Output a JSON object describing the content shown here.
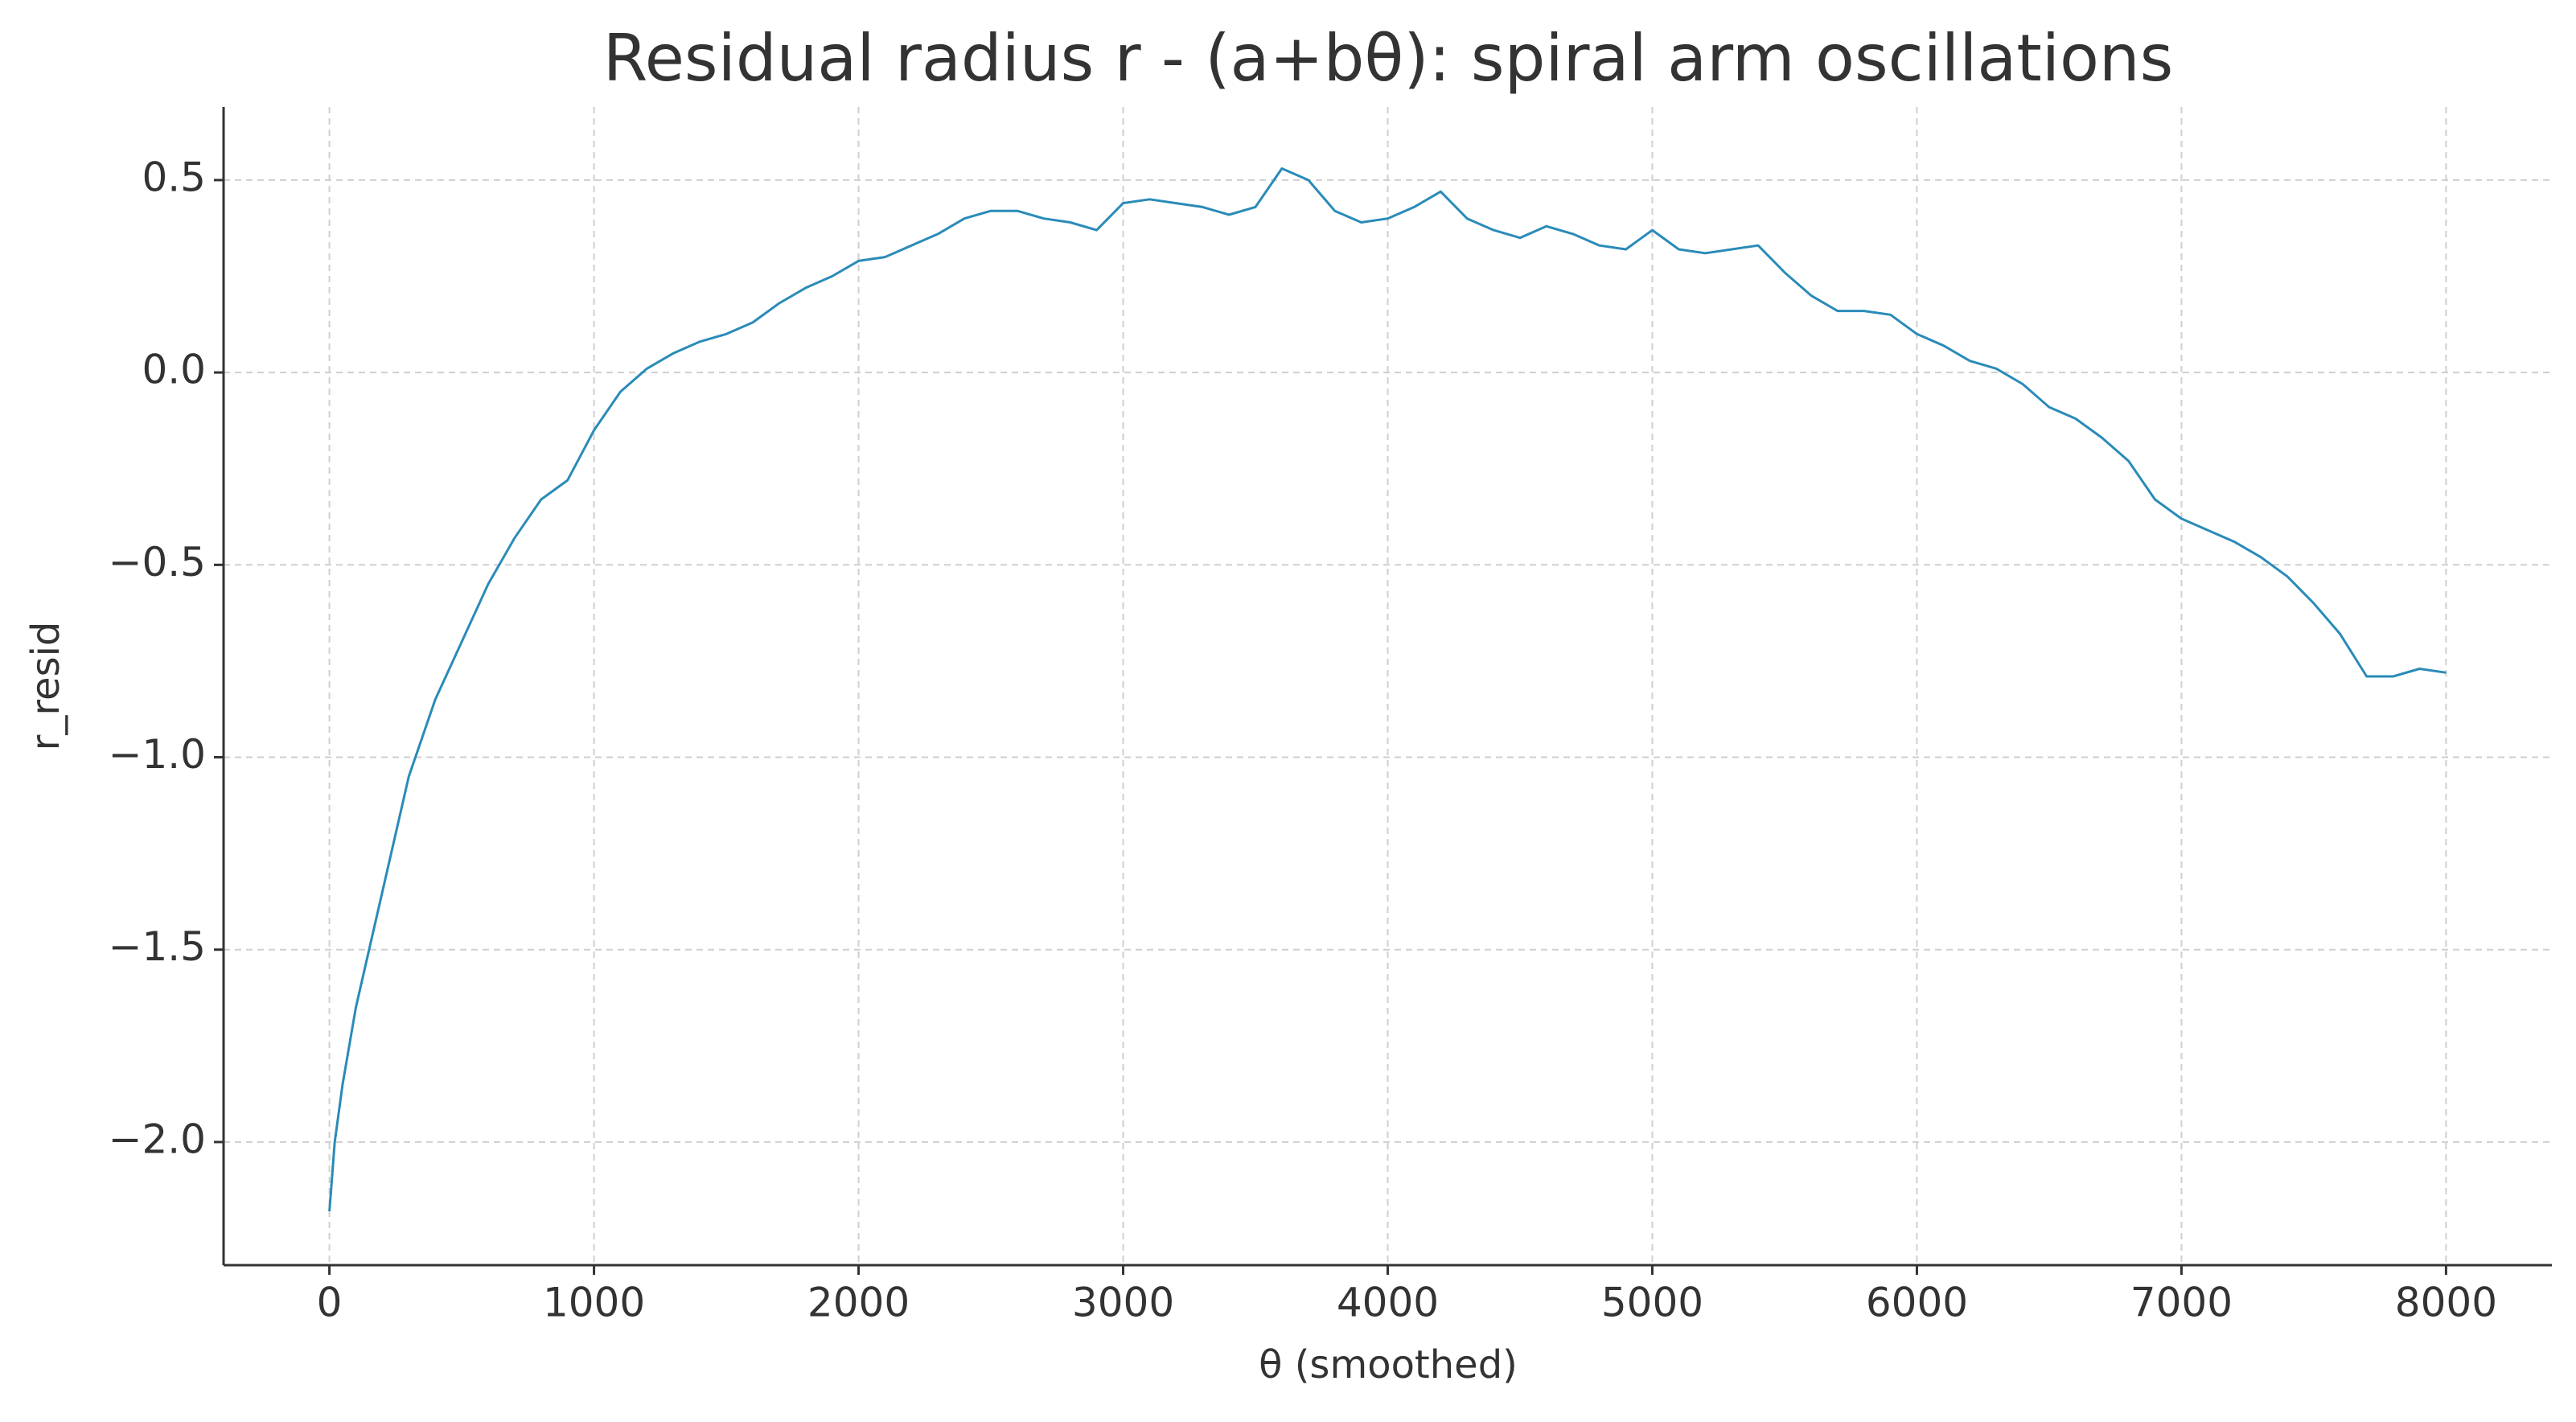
{
  "chart_data": {
    "type": "line",
    "title": "Residual radius r - (a+bθ): spiral arm oscillations",
    "xlabel": "θ (smoothed)",
    "ylabel": "r_resid",
    "color": "#2a8bb8",
    "grid": true,
    "xlim": [
      -400,
      8400
    ],
    "ylim": [
      -2.32,
      0.69
    ],
    "xticks": [
      0,
      1000,
      2000,
      3000,
      4000,
      5000,
      6000,
      7000,
      8000
    ],
    "yticks": [
      {
        "value": -2.0,
        "label": "−2.0"
      },
      {
        "value": -1.5,
        "label": "−1.5"
      },
      {
        "value": -1.0,
        "label": "−1.0"
      },
      {
        "value": -0.5,
        "label": "−0.5"
      },
      {
        "value": 0.0,
        "label": "0.0"
      },
      0.5
    ],
    "x": [
      0,
      20,
      50,
      100,
      200,
      300,
      400,
      500,
      600,
      700,
      800,
      900,
      1000,
      1100,
      1200,
      1300,
      1400,
      1500,
      1600,
      1700,
      1800,
      1900,
      2000,
      2100,
      2200,
      2300,
      2400,
      2500,
      2600,
      2700,
      2800,
      2900,
      3000,
      3100,
      3200,
      3300,
      3400,
      3500,
      3600,
      3700,
      3800,
      3900,
      4000,
      4100,
      4200,
      4300,
      4400,
      4500,
      4600,
      4700,
      4800,
      4900,
      5000,
      5100,
      5200,
      5300,
      5400,
      5500,
      5600,
      5700,
      5800,
      5900,
      6000,
      6100,
      6200,
      6300,
      6400,
      6500,
      6600,
      6700,
      6800,
      6900,
      7000,
      7100,
      7200,
      7300,
      7400,
      7500,
      7600,
      7700,
      7800,
      7900,
      8000
    ],
    "values": [
      -2.18,
      -2.0,
      -1.85,
      -1.65,
      -1.35,
      -1.05,
      -0.85,
      -0.7,
      -0.55,
      -0.43,
      -0.33,
      -0.28,
      -0.15,
      -0.05,
      0.01,
      0.05,
      0.08,
      0.1,
      0.13,
      0.18,
      0.22,
      0.25,
      0.29,
      0.3,
      0.33,
      0.36,
      0.4,
      0.42,
      0.42,
      0.4,
      0.39,
      0.37,
      0.44,
      0.45,
      0.44,
      0.43,
      0.41,
      0.43,
      0.53,
      0.5,
      0.42,
      0.39,
      0.4,
      0.43,
      0.47,
      0.4,
      0.37,
      0.35,
      0.38,
      0.36,
      0.33,
      0.32,
      0.37,
      0.32,
      0.31,
      0.32,
      0.33,
      0.26,
      0.2,
      0.16,
      0.16,
      0.15,
      0.1,
      0.07,
      0.03,
      0.01,
      -0.03,
      -0.09,
      -0.12,
      -0.17,
      -0.23,
      -0.33,
      -0.38,
      -0.41,
      -0.44,
      -0.48,
      -0.53,
      -0.6,
      -0.68,
      -0.79,
      -0.79,
      -0.77,
      -0.78
    ]
  }
}
